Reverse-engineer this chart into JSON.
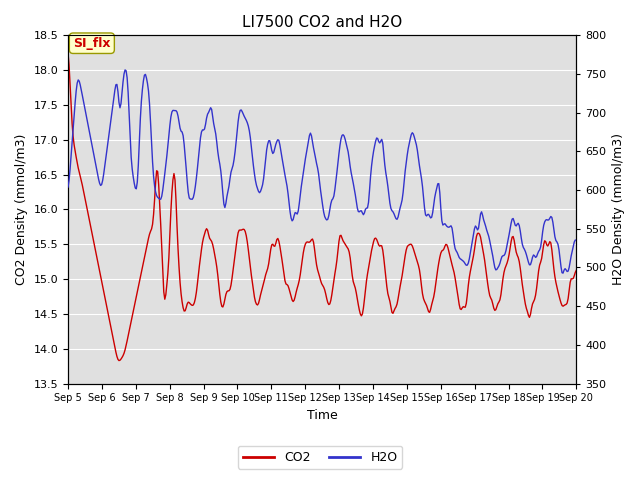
{
  "title": "LI7500 CO2 and H2O",
  "xlabel": "Time",
  "ylabel_left": "CO2 Density (mmol/m3)",
  "ylabel_right": "H2O Density (mmol/m3)",
  "ylim_left": [
    13.5,
    18.5
  ],
  "ylim_right": [
    350,
    800
  ],
  "yticks_left": [
    13.5,
    14.0,
    14.5,
    15.0,
    15.5,
    16.0,
    16.5,
    17.0,
    17.5,
    18.0,
    18.5
  ],
  "yticks_right": [
    350,
    400,
    450,
    500,
    550,
    600,
    650,
    700,
    750,
    800
  ],
  "xtick_labels": [
    "Sep 5",
    "Sep 6",
    "Sep 7",
    "Sep 8",
    "Sep 9",
    "Sep 10",
    "Sep 11",
    "Sep 12",
    "Sep 13",
    "Sep 14",
    "Sep 15",
    "Sep 16",
    "Sep 17",
    "Sep 18",
    "Sep 19",
    "Sep 20"
  ],
  "co2_color": "#CC0000",
  "h2o_color": "#3333CC",
  "background_color": "#E0E0E0",
  "annotation_text": "SI_flx",
  "annotation_color": "#CC0000",
  "annotation_bg": "#FFFFCC",
  "annotation_border": "#999900",
  "grid_color": "#FFFFFF",
  "line_width": 1.0,
  "num_points": 500
}
